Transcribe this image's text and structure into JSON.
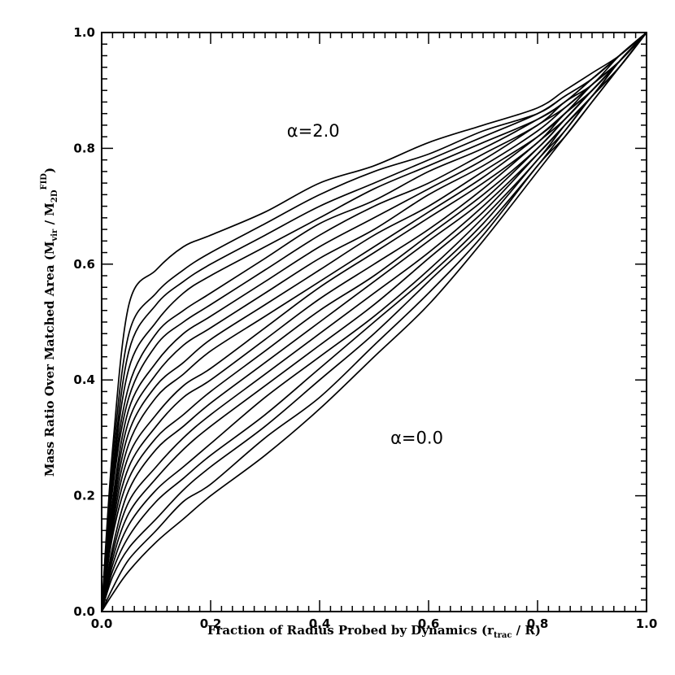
{
  "chart_data": {
    "type": "line",
    "title": "",
    "xlabel": "Fraction of Radius Probed by Dynamics (r_trac / R)",
    "ylabel": "Mass Ratio Over Matched Area (M_vir / M_2D^FID)",
    "xlabel_parts": {
      "main": "Fraction of Radius Probed by Dynamics (r",
      "sub": "trac",
      "tail": " / R)"
    },
    "ylabel_parts": {
      "main": "Mass Ratio Over Matched Area (M",
      "sub1": "vir",
      "mid": " / M",
      "sub2": "2D",
      "sup": "FID",
      "tail": ")"
    },
    "xlim": [
      0.0,
      1.0
    ],
    "ylim": [
      0.0,
      1.0
    ],
    "xticks": [
      "0.0",
      "0.2",
      "0.4",
      "0.6",
      "0.8",
      "1.0"
    ],
    "yticks": [
      "0.0",
      "0.2",
      "0.4",
      "0.6",
      "0.8",
      "1.0"
    ],
    "annotations": [
      {
        "text": "α=2.0",
        "x": 0.34,
        "y": 0.82
      },
      {
        "text": "α=0.0",
        "x": 0.53,
        "y": 0.29
      }
    ],
    "grid": false,
    "legend": "none",
    "x": [
      0.0,
      0.02,
      0.05,
      0.1,
      0.15,
      0.2,
      0.3,
      0.4,
      0.5,
      0.6,
      0.7,
      0.8,
      0.85,
      0.9,
      0.95,
      1.0
    ],
    "series": [
      {
        "values": [
          0.0,
          0.03,
          0.07,
          0.12,
          0.16,
          0.2,
          0.27,
          0.35,
          0.44,
          0.53,
          0.64,
          0.76,
          0.82,
          0.88,
          0.94,
          1.0
        ]
      },
      {
        "values": [
          0.0,
          0.04,
          0.09,
          0.14,
          0.19,
          0.22,
          0.3,
          0.37,
          0.46,
          0.55,
          0.65,
          0.77,
          0.82,
          0.88,
          0.94,
          1.0
        ]
      },
      {
        "values": [
          0.0,
          0.06,
          0.11,
          0.16,
          0.21,
          0.25,
          0.32,
          0.4,
          0.48,
          0.57,
          0.66,
          0.77,
          0.83,
          0.89,
          0.94,
          1.0
        ]
      },
      {
        "values": [
          0.0,
          0.07,
          0.13,
          0.19,
          0.23,
          0.27,
          0.34,
          0.42,
          0.5,
          0.58,
          0.67,
          0.78,
          0.83,
          0.89,
          0.94,
          1.0
        ]
      },
      {
        "values": [
          0.0,
          0.08,
          0.15,
          0.21,
          0.25,
          0.29,
          0.37,
          0.44,
          0.51,
          0.59,
          0.68,
          0.78,
          0.84,
          0.89,
          0.94,
          1.0
        ]
      },
      {
        "values": [
          0.0,
          0.09,
          0.17,
          0.23,
          0.28,
          0.32,
          0.39,
          0.46,
          0.53,
          0.61,
          0.69,
          0.79,
          0.84,
          0.89,
          0.95,
          1.0
        ]
      },
      {
        "values": [
          0.0,
          0.1,
          0.19,
          0.25,
          0.3,
          0.34,
          0.41,
          0.48,
          0.55,
          0.62,
          0.7,
          0.79,
          0.84,
          0.89,
          0.95,
          1.0
        ]
      },
      {
        "values": [
          0.0,
          0.11,
          0.21,
          0.28,
          0.32,
          0.36,
          0.43,
          0.5,
          0.57,
          0.64,
          0.71,
          0.8,
          0.85,
          0.9,
          0.95,
          1.0
        ]
      },
      {
        "values": [
          0.0,
          0.13,
          0.23,
          0.3,
          0.34,
          0.38,
          0.45,
          0.52,
          0.58,
          0.65,
          0.72,
          0.8,
          0.85,
          0.9,
          0.95,
          1.0
        ]
      },
      {
        "values": [
          0.0,
          0.14,
          0.25,
          0.32,
          0.37,
          0.4,
          0.47,
          0.54,
          0.6,
          0.66,
          0.73,
          0.81,
          0.85,
          0.9,
          0.95,
          1.0
        ]
      },
      {
        "values": [
          0.0,
          0.15,
          0.27,
          0.34,
          0.39,
          0.42,
          0.49,
          0.56,
          0.62,
          0.68,
          0.74,
          0.81,
          0.86,
          0.9,
          0.95,
          1.0
        ]
      },
      {
        "values": [
          0.0,
          0.16,
          0.29,
          0.37,
          0.41,
          0.45,
          0.51,
          0.57,
          0.63,
          0.69,
          0.75,
          0.82,
          0.86,
          0.9,
          0.95,
          1.0
        ]
      },
      {
        "values": [
          0.0,
          0.17,
          0.31,
          0.39,
          0.43,
          0.47,
          0.53,
          0.59,
          0.65,
          0.7,
          0.76,
          0.82,
          0.86,
          0.91,
          0.95,
          1.0
        ]
      },
      {
        "values": [
          0.0,
          0.18,
          0.33,
          0.41,
          0.46,
          0.49,
          0.55,
          0.61,
          0.66,
          0.72,
          0.77,
          0.83,
          0.87,
          0.91,
          0.95,
          1.0
        ]
      },
      {
        "values": [
          0.0,
          0.19,
          0.35,
          0.43,
          0.48,
          0.51,
          0.57,
          0.63,
          0.68,
          0.73,
          0.78,
          0.84,
          0.87,
          0.91,
          0.95,
          1.0
        ]
      },
      {
        "values": [
          0.0,
          0.21,
          0.37,
          0.46,
          0.5,
          0.53,
          0.59,
          0.65,
          0.7,
          0.74,
          0.79,
          0.84,
          0.88,
          0.91,
          0.96,
          1.0
        ]
      },
      {
        "values": [
          0.0,
          0.22,
          0.39,
          0.48,
          0.52,
          0.55,
          0.61,
          0.67,
          0.71,
          0.76,
          0.8,
          0.85,
          0.88,
          0.92,
          0.96,
          1.0
        ]
      },
      {
        "values": [
          0.0,
          0.23,
          0.42,
          0.5,
          0.55,
          0.58,
          0.63,
          0.68,
          0.73,
          0.77,
          0.81,
          0.85,
          0.88,
          0.92,
          0.96,
          1.0
        ]
      },
      {
        "values": [
          0.0,
          0.24,
          0.45,
          0.53,
          0.57,
          0.6,
          0.65,
          0.7,
          0.74,
          0.78,
          0.82,
          0.86,
          0.89,
          0.92,
          0.96,
          1.0
        ]
      },
      {
        "values": [
          0.0,
          0.26,
          0.48,
          0.55,
          0.59,
          0.62,
          0.67,
          0.72,
          0.76,
          0.79,
          0.83,
          0.86,
          0.89,
          0.92,
          0.96,
          1.0
        ]
      },
      {
        "values": [
          0.0,
          0.28,
          0.53,
          0.59,
          0.63,
          0.65,
          0.69,
          0.74,
          0.77,
          0.81,
          0.84,
          0.87,
          0.9,
          0.93,
          0.96,
          1.0
        ]
      }
    ]
  }
}
